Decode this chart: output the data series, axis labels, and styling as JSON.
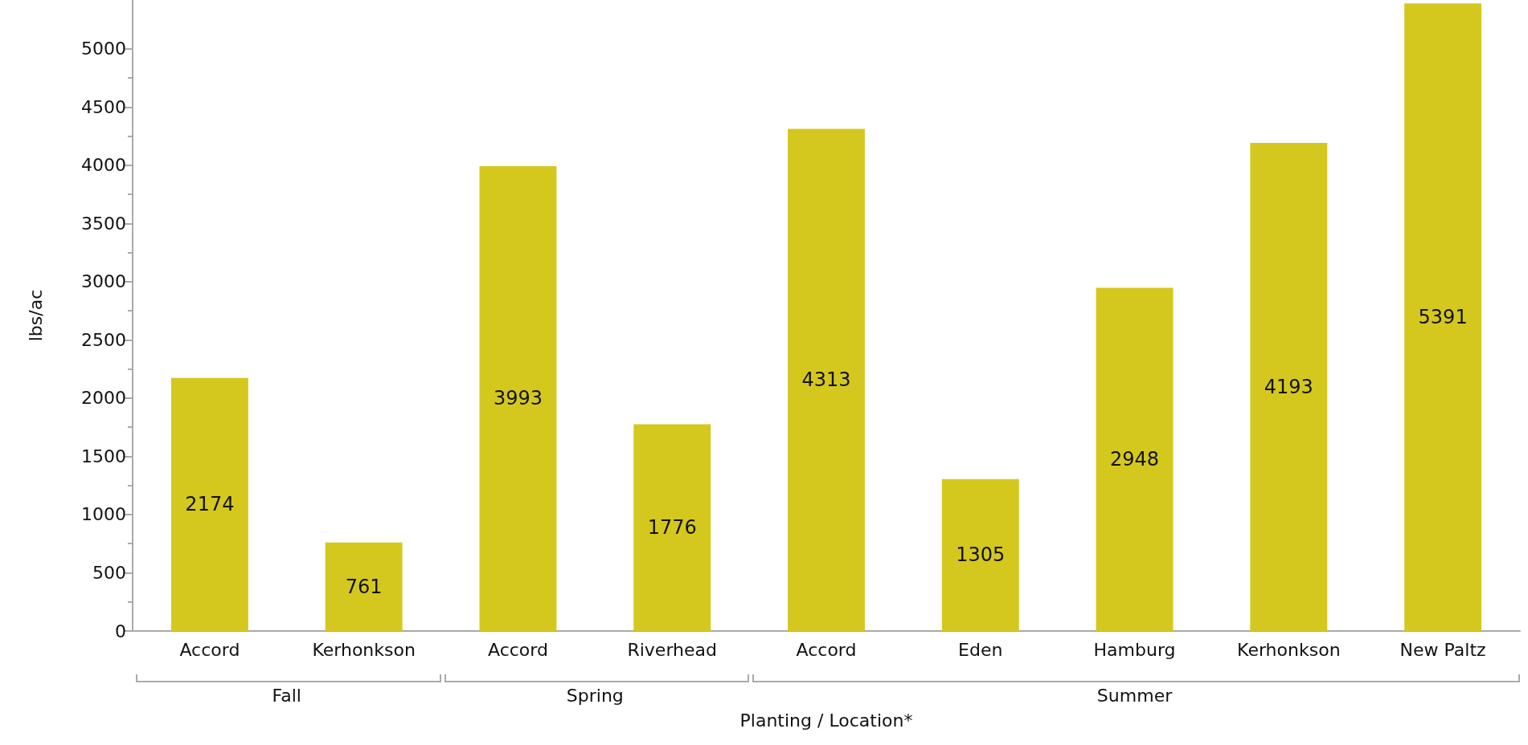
{
  "chart_data": {
    "type": "bar",
    "xlabel": "Planting / Location*",
    "ylabel": "lbs/ac",
    "categories": [
      "Accord",
      "Kerhonkson",
      "Accord",
      "Riverhead",
      "Accord",
      "Eden",
      "Hamburg",
      "Kerhonkson",
      "New Paltz"
    ],
    "values": [
      2174,
      761,
      3993,
      1776,
      4313,
      1305,
      2948,
      4193,
      5391
    ],
    "color": "#d4c81e",
    "data_labels": true,
    "grid": false,
    "ylim": [
      0,
      5420
    ],
    "yticks": [
      0,
      500,
      1000,
      1500,
      2000,
      2500,
      3000,
      3500,
      4000,
      4500,
      5000
    ],
    "annotations": [
      "Fall",
      "Spring",
      "Summer"
    ]
  }
}
